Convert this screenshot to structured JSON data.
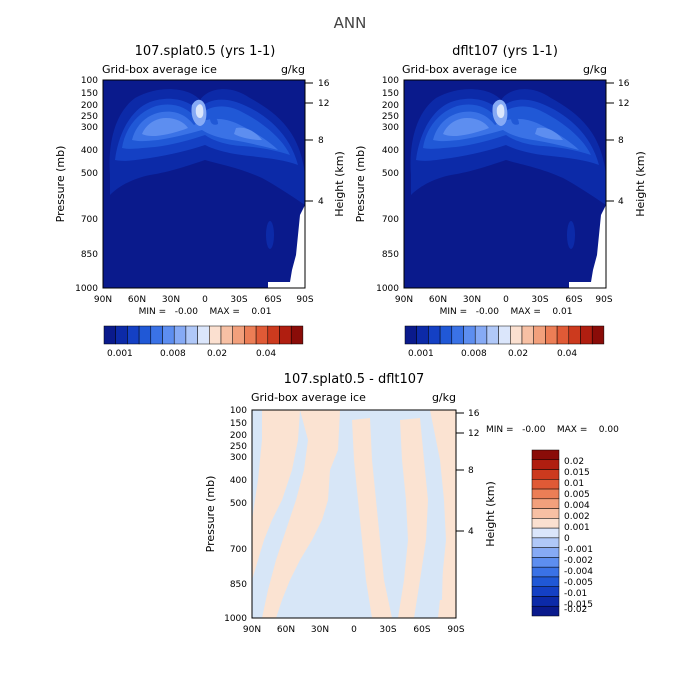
{
  "page_title": "ANN",
  "colors": {
    "base": "#0a1a8c",
    "blue_scale": [
      "#0a1a8c",
      "#0c2aa8",
      "#1440c4",
      "#2058d6",
      "#3a72e6",
      "#5d8ef0",
      "#86aaf5",
      "#b0c8f8",
      "#dbe6fb"
    ],
    "pos_scale": [
      "#fbe0d0",
      "#f7c0a4",
      "#f2a07c",
      "#ec7e56",
      "#e05a36",
      "#cc3a1e",
      "#b01e10",
      "#8a0c08"
    ],
    "diff_blue": "#d7e6f7",
    "diff_pink": "#fbe3d2"
  },
  "chart_data": [
    {
      "type": "heatmap",
      "title": "107.splat0.5 (yrs 1-1)",
      "subtitle_left": "Grid-box average ice",
      "subtitle_right": "g/kg",
      "ylabel": "Pressure (mb)",
      "ylabel_right": "Height (km)",
      "x_ticks": [
        "90N",
        "60N",
        "30N",
        "0",
        "30S",
        "60S",
        "90S"
      ],
      "y_ticks": [
        "100",
        "150",
        "200",
        "250",
        "300",
        "400",
        "500",
        "700",
        "850",
        "1000"
      ],
      "y_ticks_right": [
        "16",
        "12",
        "8",
        "4"
      ],
      "ylim": [
        1000,
        100
      ],
      "stats": "MIN =   -0.00    MAX =    0.01",
      "colorbar_labels": [
        "0.001",
        "0.008",
        "0.02",
        "0.04"
      ]
    },
    {
      "type": "heatmap",
      "title": "dflt107 (yrs 1-1)",
      "subtitle_left": "Grid-box average ice",
      "subtitle_right": "g/kg",
      "ylabel": "Pressure (mb)",
      "ylabel_right": "Height (km)",
      "x_ticks": [
        "90N",
        "60N",
        "30N",
        "0",
        "30S",
        "60S",
        "90S"
      ],
      "y_ticks": [
        "100",
        "150",
        "200",
        "250",
        "300",
        "400",
        "500",
        "700",
        "850",
        "1000"
      ],
      "y_ticks_right": [
        "16",
        "12",
        "8",
        "4"
      ],
      "ylim": [
        1000,
        100
      ],
      "stats": "MIN =   -0.00    MAX =    0.01",
      "colorbar_labels": [
        "0.001",
        "0.008",
        "0.02",
        "0.04"
      ]
    },
    {
      "type": "heatmap",
      "title": "107.splat0.5 - dflt107",
      "subtitle_left": "Grid-box average ice",
      "subtitle_right": "g/kg",
      "ylabel": "Pressure (mb)",
      "ylabel_right": "Height (km)",
      "x_ticks": [
        "90N",
        "60N",
        "30N",
        "0",
        "30S",
        "60S",
        "90S"
      ],
      "y_ticks": [
        "100",
        "150",
        "200",
        "250",
        "300",
        "400",
        "500",
        "700",
        "850",
        "1000"
      ],
      "y_ticks_right": [
        "16",
        "12",
        "8",
        "4"
      ],
      "ylim": [
        1000,
        100
      ],
      "stats": "MIN =   -0.00    MAX =    0.00",
      "colorbar_labels": [
        "0.02",
        "0.015",
        "0.01",
        "0.005",
        "0.004",
        "0.002",
        "0.001",
        "0",
        "-0.001",
        "-0.002",
        "-0.004",
        "-0.005",
        "-0.01",
        "-0.015",
        "-0.02"
      ]
    }
  ]
}
